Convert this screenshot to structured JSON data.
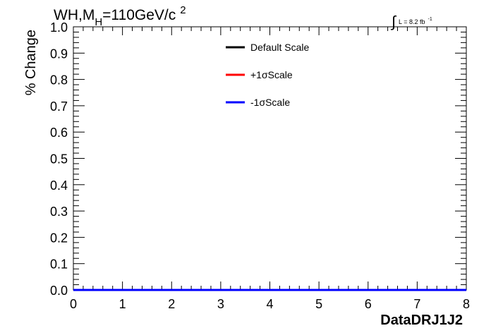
{
  "chart_data": {
    "type": "line",
    "title_main": "WH,M",
    "title_sub": "H",
    "title_rest": "=110GeV/c",
    "title_sup": "2",
    "lumi": {
      "integral": "∫",
      "text": "L = 8.2 fb",
      "sup": "-1"
    },
    "xlabel": "DataDRJ1J2",
    "ylabel": "% Change",
    "xlim": [
      0,
      8
    ],
    "ylim": [
      0,
      1.0
    ],
    "x_ticks": [
      "0",
      "1",
      "2",
      "3",
      "4",
      "5",
      "6",
      "7",
      "8"
    ],
    "y_ticks": [
      "0.0",
      "0.1",
      "0.2",
      "0.3",
      "0.4",
      "0.5",
      "0.6",
      "0.7",
      "0.8",
      "0.9",
      "1.0"
    ],
    "series": [
      {
        "name": "Default Scale",
        "color": "#000000",
        "x": [
          0,
          8
        ],
        "y": [
          0,
          0
        ]
      },
      {
        "name": "+1σScale",
        "color": "#ff0000",
        "x": [
          0,
          8
        ],
        "y": [
          0,
          0
        ]
      },
      {
        "name": "-1σScale",
        "color": "#0000ff",
        "x": [
          0,
          8
        ],
        "y": [
          0,
          0
        ]
      }
    ],
    "legend_position": "top-center",
    "grid": false
  }
}
